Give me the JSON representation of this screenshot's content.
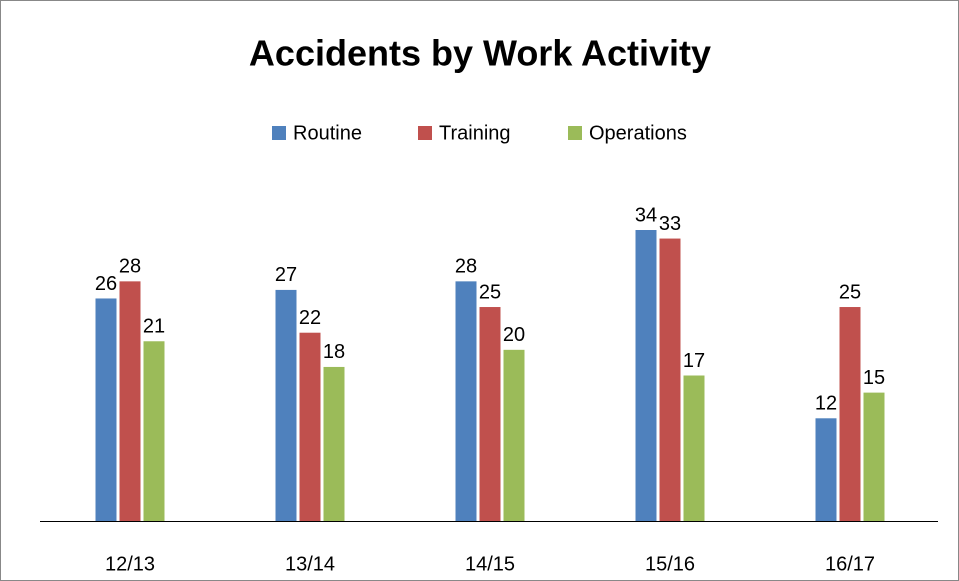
{
  "chart_data": {
    "type": "bar",
    "title": "Accidents by Work Activity",
    "categories": [
      "12/13",
      "13/14",
      "14/15",
      "15/16",
      "16/17"
    ],
    "series": [
      {
        "name": "Routine",
        "color": "#4f81bd",
        "values": [
          26,
          27,
          28,
          34,
          12
        ]
      },
      {
        "name": "Training",
        "color": "#c0504d",
        "values": [
          28,
          22,
          25,
          33,
          25
        ]
      },
      {
        "name": "Operations",
        "color": "#9bbb59",
        "values": [
          21,
          18,
          20,
          17,
          15
        ]
      }
    ],
    "legend": "top"
  }
}
